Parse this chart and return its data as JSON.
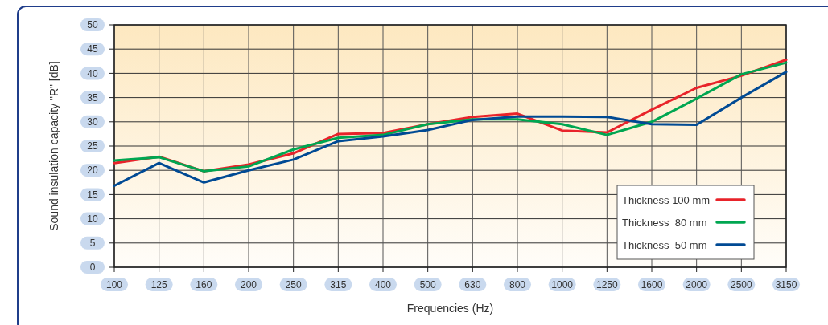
{
  "chart_data": {
    "type": "line",
    "xlabel": "Frequencies (Hz)",
    "ylabel": "Sound insulation capacity \"R\" [dB]",
    "categories": [
      "100",
      "125",
      "160",
      "200",
      "250",
      "315",
      "400",
      "500",
      "630",
      "800",
      "1000",
      "1250",
      "1600",
      "2000",
      "2500",
      "3150"
    ],
    "series": [
      {
        "name": "Thickness 100 mm",
        "color": "#e8232a",
        "values": [
          21.5,
          22.8,
          19.8,
          21.2,
          23.5,
          27.5,
          27.7,
          29.5,
          31,
          31.7,
          28.2,
          27.8,
          32.5,
          37,
          39.5,
          42.8
        ]
      },
      {
        "name": "Thickness  80 mm",
        "color": "#00a651",
        "values": [
          22,
          22.7,
          19.8,
          20.8,
          24.3,
          26.7,
          27.3,
          29.5,
          30.5,
          30.5,
          29.5,
          27.3,
          30,
          34.8,
          39.8,
          42.2
        ]
      },
      {
        "name": "Thickness  50 mm",
        "color": "#004a94",
        "values": [
          16.8,
          21.5,
          17.5,
          20,
          22.2,
          26,
          27,
          28.3,
          30.4,
          31.1,
          31.1,
          31,
          29.5,
          29.4,
          35,
          40.3
        ]
      }
    ],
    "ylim": [
      0,
      50
    ],
    "yticks": [
      0,
      5,
      10,
      15,
      20,
      25,
      30,
      35,
      40,
      45,
      50
    ],
    "grid": true,
    "legend": "bottom right",
    "marker": "none",
    "line_style": "solid"
  }
}
